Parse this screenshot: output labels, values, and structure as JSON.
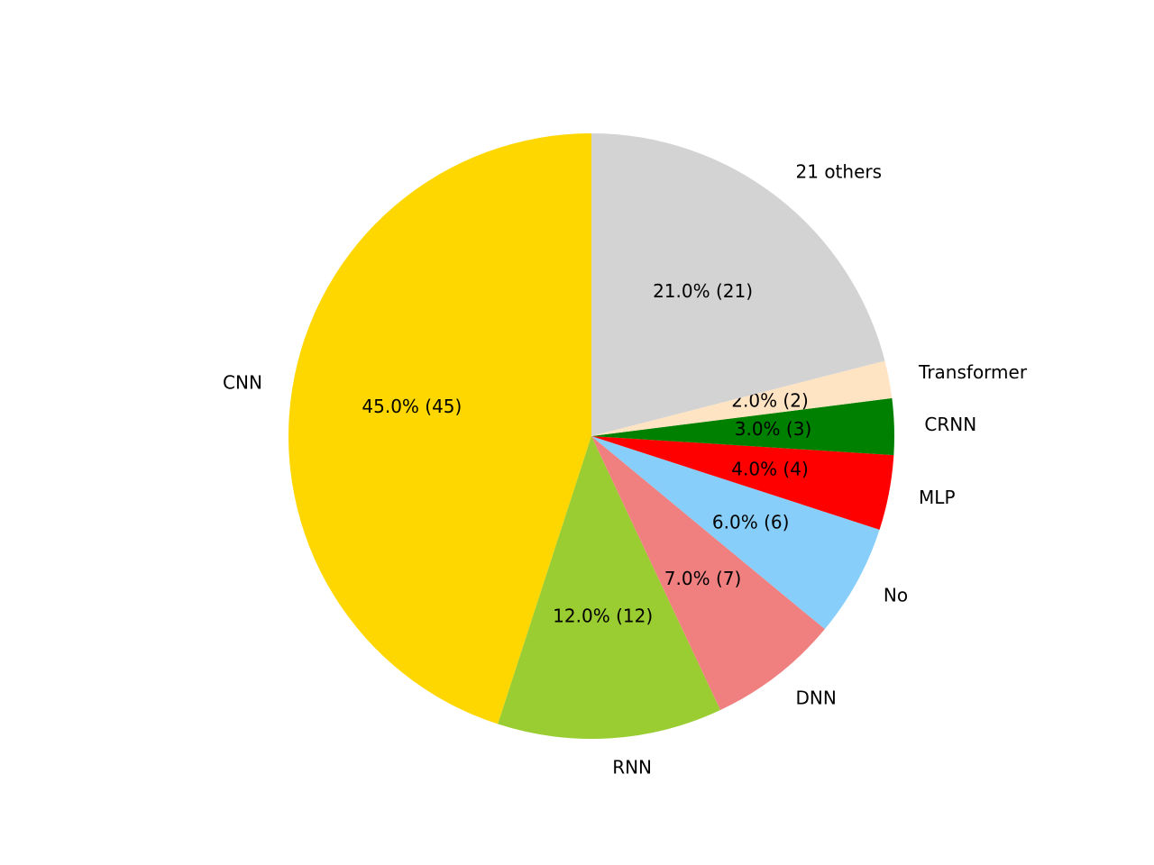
{
  "chart_data": {
    "type": "pie",
    "categories": [
      "CNN",
      "RNN",
      "DNN",
      "No",
      "MLP",
      "CRNN",
      "Transformer",
      "21 others"
    ],
    "values": [
      45,
      12,
      7,
      6,
      4,
      3,
      2,
      21
    ],
    "value_labels": [
      "45.0%  (45)",
      "12.0%  (12)",
      "7.0%  (7)",
      "6.0%  (6)",
      "4.0%  (4)",
      "3.0%  (3)",
      "2.0%  (2)",
      "21.0%  (21)"
    ],
    "colors": [
      "#ffd700",
      "#9acd32",
      "#f08080",
      "#87cefa",
      "#ff0000",
      "#008000",
      "#ffe4c4",
      "#d3d3d3"
    ]
  }
}
